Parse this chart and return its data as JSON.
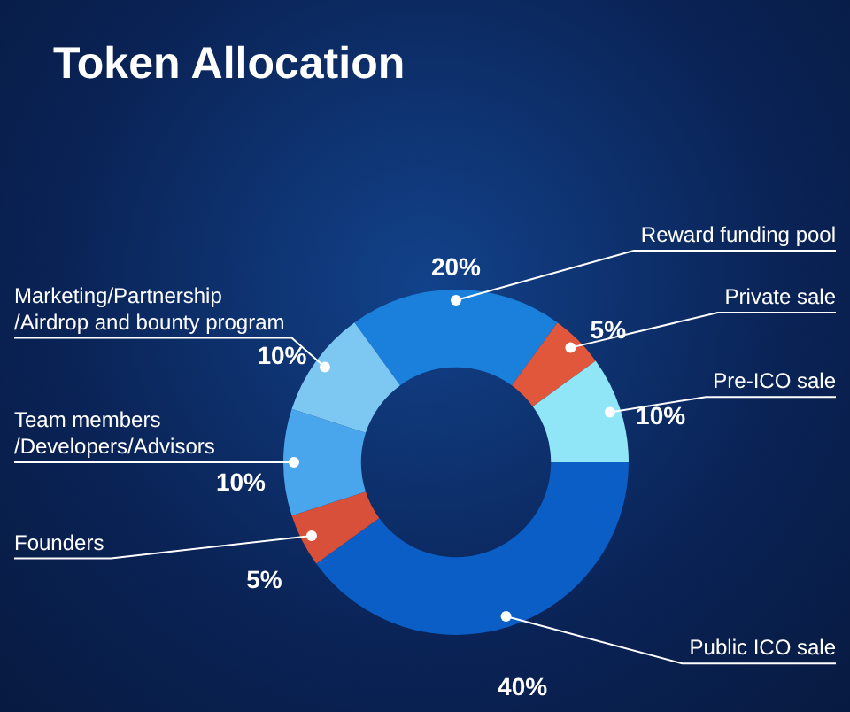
{
  "chart_data": {
    "type": "donut",
    "title": "Token Allocation",
    "categories": [
      "Reward funding pool",
      "Private sale",
      "Pre-ICO sale",
      "Public ICO sale",
      "Founders",
      "Team members\n/Developers/Advisors",
      "Marketing/Partnership\n/Airdrop and bounty program"
    ],
    "values": [
      20,
      5,
      10,
      40,
      5,
      10,
      10
    ],
    "value_labels": [
      "20%",
      "5%",
      "10%",
      "40%",
      "5%",
      "10%",
      "10%"
    ],
    "colors": [
      "#1a80dc",
      "#e0573c",
      "#90e6f6",
      "#0b5ec6",
      "#d9503a",
      "#4aa6ec",
      "#7cc8f2"
    ],
    "legend": false
  }
}
